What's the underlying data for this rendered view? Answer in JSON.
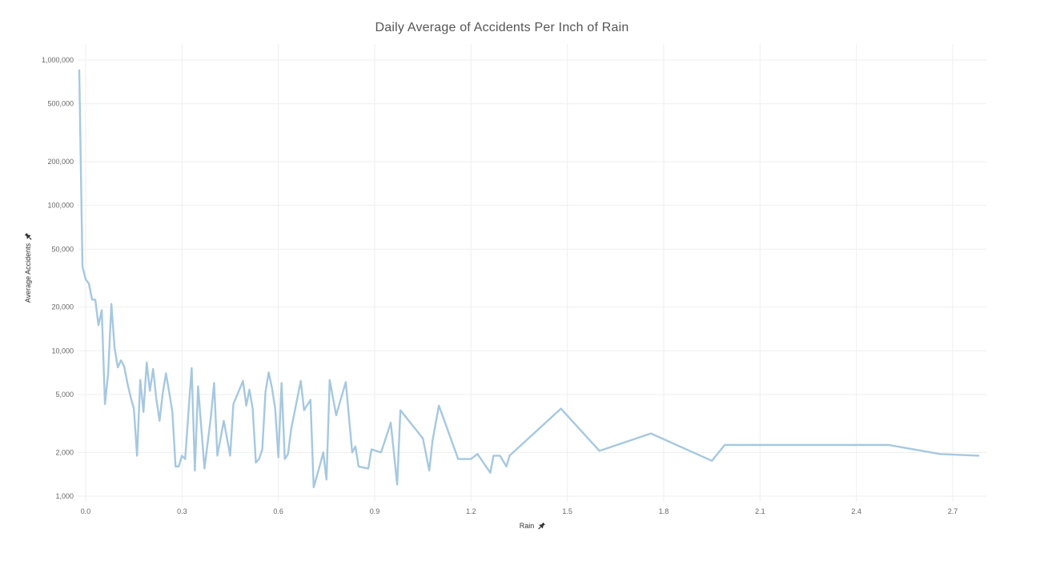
{
  "chart_data": {
    "type": "line",
    "title": "Daily Average of Accidents Per Inch of Rain",
    "xlabel": "Rain",
    "ylabel": "Average Accidents",
    "y_scale": "log",
    "xlim": [
      -0.02,
      2.78
    ],
    "ylim": [
      900,
      1300000
    ],
    "x_ticks": [
      0.0,
      0.3,
      0.6,
      0.9,
      1.2,
      1.5,
      1.8,
      2.1,
      2.4,
      2.7
    ],
    "x_tick_labels": [
      "0.0",
      "0.3",
      "0.6",
      "0.9",
      "1.2",
      "1.5",
      "1.8",
      "2.1",
      "2.4",
      "2.7"
    ],
    "y_ticks": [
      1000,
      2000,
      5000,
      10000,
      20000,
      50000,
      100000,
      200000,
      500000,
      1000000
    ],
    "y_tick_labels": [
      "1,000",
      "2,000",
      "5,000",
      "10,000",
      "20,000",
      "50,000",
      "100,000",
      "200,000",
      "500,000",
      "1,000,000"
    ],
    "grid": true,
    "line_color": "#a6c8e0",
    "series": [
      {
        "points": [
          [
            -0.02,
            850000
          ],
          [
            -0.01,
            38000
          ],
          [
            0.0,
            31000
          ],
          [
            0.01,
            29000
          ],
          [
            0.02,
            22500
          ],
          [
            0.03,
            22500
          ],
          [
            0.04,
            15000
          ],
          [
            0.05,
            19000
          ],
          [
            0.06,
            4300
          ],
          [
            0.07,
            7000
          ],
          [
            0.08,
            21000
          ],
          [
            0.09,
            10500
          ],
          [
            0.1,
            7700
          ],
          [
            0.11,
            8600
          ],
          [
            0.12,
            7800
          ],
          [
            0.13,
            6000
          ],
          [
            0.14,
            4800
          ],
          [
            0.15,
            4000
          ],
          [
            0.16,
            1900
          ],
          [
            0.17,
            6300
          ],
          [
            0.18,
            3800
          ],
          [
            0.19,
            8300
          ],
          [
            0.2,
            5300
          ],
          [
            0.21,
            7500
          ],
          [
            0.22,
            4700
          ],
          [
            0.23,
            3300
          ],
          [
            0.24,
            5100
          ],
          [
            0.25,
            7000
          ],
          [
            0.26,
            5200
          ],
          [
            0.27,
            3800
          ],
          [
            0.28,
            1600
          ],
          [
            0.29,
            1600
          ],
          [
            0.3,
            1900
          ],
          [
            0.31,
            1800
          ],
          [
            0.32,
            3800
          ],
          [
            0.33,
            7600
          ],
          [
            0.34,
            1500
          ],
          [
            0.35,
            5700
          ],
          [
            0.37,
            1550
          ],
          [
            0.39,
            3500
          ],
          [
            0.4,
            6000
          ],
          [
            0.41,
            1900
          ],
          [
            0.43,
            3300
          ],
          [
            0.45,
            1900
          ],
          [
            0.46,
            4300
          ],
          [
            0.49,
            6200
          ],
          [
            0.5,
            4200
          ],
          [
            0.51,
            5400
          ],
          [
            0.52,
            4000
          ],
          [
            0.53,
            1700
          ],
          [
            0.54,
            1800
          ],
          [
            0.55,
            2100
          ],
          [
            0.56,
            5200
          ],
          [
            0.57,
            7100
          ],
          [
            0.58,
            5600
          ],
          [
            0.59,
            4000
          ],
          [
            0.6,
            1850
          ],
          [
            0.61,
            6000
          ],
          [
            0.62,
            1800
          ],
          [
            0.63,
            1950
          ],
          [
            0.64,
            2900
          ],
          [
            0.67,
            6200
          ],
          [
            0.68,
            3900
          ],
          [
            0.7,
            4600
          ],
          [
            0.71,
            1150
          ],
          [
            0.73,
            1650
          ],
          [
            0.74,
            2000
          ],
          [
            0.75,
            1300
          ],
          [
            0.76,
            6300
          ],
          [
            0.78,
            3600
          ],
          [
            0.81,
            6100
          ],
          [
            0.83,
            2000
          ],
          [
            0.84,
            2200
          ],
          [
            0.85,
            1600
          ],
          [
            0.88,
            1550
          ],
          [
            0.89,
            2100
          ],
          [
            0.92,
            2000
          ],
          [
            0.95,
            3200
          ],
          [
            0.97,
            1200
          ],
          [
            0.98,
            3900
          ],
          [
            1.05,
            2500
          ],
          [
            1.07,
            1500
          ],
          [
            1.08,
            2400
          ],
          [
            1.1,
            4200
          ],
          [
            1.16,
            1800
          ],
          [
            1.2,
            1800
          ],
          [
            1.22,
            1950
          ],
          [
            1.26,
            1450
          ],
          [
            1.27,
            1900
          ],
          [
            1.29,
            1900
          ],
          [
            1.31,
            1600
          ],
          [
            1.32,
            1900
          ],
          [
            1.48,
            4000
          ],
          [
            1.6,
            2050
          ],
          [
            1.76,
            2700
          ],
          [
            1.95,
            1750
          ],
          [
            1.99,
            2250
          ],
          [
            2.5,
            2250
          ],
          [
            2.66,
            1950
          ],
          [
            2.78,
            1900
          ]
        ]
      }
    ]
  }
}
